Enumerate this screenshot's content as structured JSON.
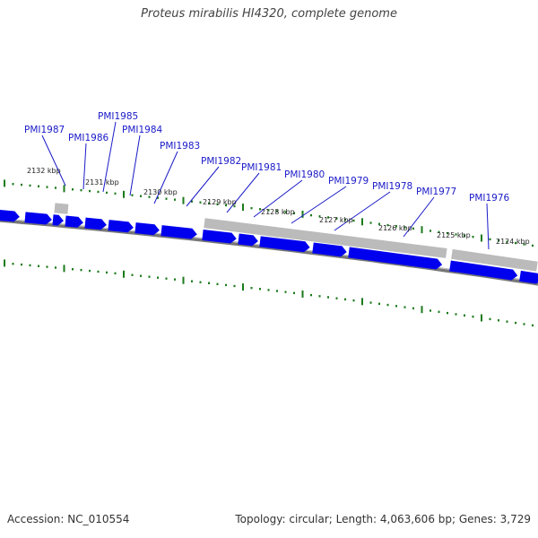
{
  "title": "Proteus mirabilis HI4320, complete genome",
  "footer": {
    "accession": "Accession: NC_010554",
    "summary": "Topology: circular; Length: 4,063,606 bp; Genes: 3,729"
  },
  "colors": {
    "gene_fill": "#0000ee",
    "gene_label": "#1a1ac8",
    "rna_fill": "#bbbbbb",
    "backbone": "#777777",
    "tick": "#1b7a1b",
    "leader": "#1a1ac8"
  },
  "gene_labels": [
    "PMI1987",
    "PMI1986",
    "PMI1985",
    "PMI1984",
    "PMI1983",
    "PMI1982",
    "PMI1981",
    "PMI1980",
    "PMI1979",
    "PMI1978",
    "PMI1977",
    "PMI1976"
  ],
  "kbp_labels": [
    "2132 kbp",
    "2131 kbp",
    "2130 kbp",
    "2129 kbp",
    "2128 kbp",
    "2127 kbp",
    "2126 kbp",
    "2125 kbp",
    "2124 kbp"
  ]
}
